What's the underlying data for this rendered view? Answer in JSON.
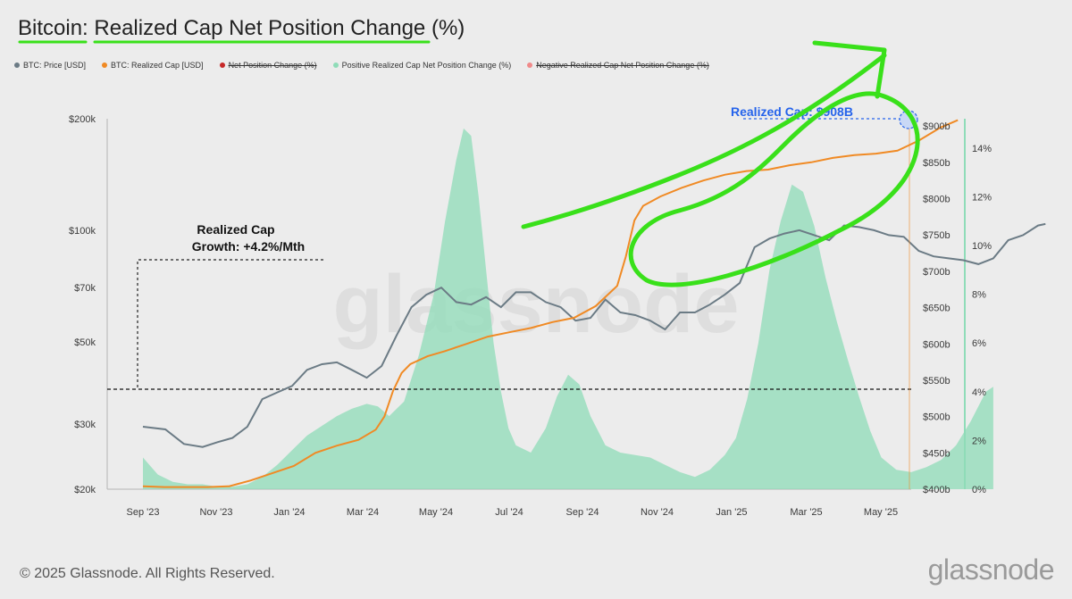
{
  "page": {
    "title_prefix": "Bitcoin",
    "title_main": "Realized Cap Net Position Change",
    "title_suffix": "(%)",
    "footer": "© 2025 Glassnode. All Rights Reserved.",
    "logo": "glassnode",
    "watermark": "glassnode"
  },
  "legend": [
    {
      "label": "BTC: Price [USD]",
      "color": "#6b7b85",
      "strike": false
    },
    {
      "label": "BTC: Realized Cap [USD]",
      "color": "#f08a24",
      "strike": false
    },
    {
      "label": "Net Position Change (%)",
      "color": "#c62828",
      "strike": true
    },
    {
      "label": "Positive Realized Cap Net Position Change (%)",
      "color": "#8fdcb8",
      "strike": false
    },
    {
      "label": "Negative Realized Cap Net Position Change (%)",
      "color": "#f08a8a",
      "strike": true
    }
  ],
  "colors": {
    "price": "#6b7b85",
    "realized_cap": "#f08a24",
    "positive_change": "#8fdcb8",
    "annotation_green": "#39e01a",
    "highlight_blue": "#2563eb"
  },
  "annotations": {
    "growth_label_line1": "Realized Cap",
    "growth_label_line2": "Growth: +4.2%/Mth",
    "realized_cap_label": "Realized Cap: $908B"
  },
  "chart_data": {
    "type": "line",
    "x_ticks": [
      "Sep '23",
      "Nov '23",
      "Jan '24",
      "Mar '24",
      "May '24",
      "Jul '24",
      "Sep '24",
      "Nov '24",
      "Jan '25",
      "Mar '25",
      "May '25"
    ],
    "axes": {
      "price": {
        "scale": "log",
        "range": [
          20000,
          200000
        ],
        "ticks": [
          "$20k",
          "$30k",
          "$50k",
          "$70k",
          "$100k",
          "$200k"
        ],
        "tick_values": [
          20000,
          30000,
          50000,
          70000,
          100000,
          200000
        ]
      },
      "realized_cap": {
        "range": [
          400,
          910
        ],
        "ticks": [
          "$400b",
          "$450b",
          "$500b",
          "$550b",
          "$600b",
          "$650b",
          "$700b",
          "$750b",
          "$800b",
          "$850b",
          "$900b"
        ],
        "tick_values": [
          400,
          450,
          500,
          550,
          600,
          650,
          700,
          750,
          800,
          850,
          900
        ]
      },
      "percent": {
        "range": [
          0,
          15.2
        ],
        "ticks": [
          "0%",
          "2%",
          "4%",
          "6%",
          "8%",
          "10%",
          "12%",
          "14%"
        ],
        "tick_values": [
          0,
          2,
          4,
          6,
          8,
          10,
          12,
          14
        ]
      }
    },
    "series": [
      {
        "name": "BTC: Price [USD]",
        "axis": "price",
        "points": [
          [
            0,
            29500
          ],
          [
            0.3,
            29000
          ],
          [
            0.55,
            26500
          ],
          [
            0.8,
            26000
          ],
          [
            1.0,
            26800
          ],
          [
            1.2,
            27500
          ],
          [
            1.4,
            29500
          ],
          [
            1.6,
            35000
          ],
          [
            1.8,
            36500
          ],
          [
            2.0,
            38000
          ],
          [
            2.2,
            42000
          ],
          [
            2.4,
            43500
          ],
          [
            2.6,
            44000
          ],
          [
            2.8,
            42000
          ],
          [
            3.0,
            40000
          ],
          [
            3.2,
            43000
          ],
          [
            3.4,
            52000
          ],
          [
            3.6,
            62000
          ],
          [
            3.8,
            67000
          ],
          [
            4.0,
            70000
          ],
          [
            4.2,
            64000
          ],
          [
            4.4,
            63000
          ],
          [
            4.6,
            66000
          ],
          [
            4.8,
            62000
          ],
          [
            5.0,
            68000
          ],
          [
            5.2,
            68000
          ],
          [
            5.4,
            64000
          ],
          [
            5.6,
            62000
          ],
          [
            5.8,
            57000
          ],
          [
            6.0,
            58000
          ],
          [
            6.2,
            65000
          ],
          [
            6.4,
            60000
          ],
          [
            6.6,
            59000
          ],
          [
            6.8,
            57000
          ],
          [
            7.0,
            54000
          ],
          [
            7.2,
            60000
          ],
          [
            7.4,
            60000
          ],
          [
            7.6,
            63000
          ],
          [
            7.8,
            67000
          ],
          [
            8.0,
            72000
          ],
          [
            8.2,
            90000
          ],
          [
            8.4,
            95000
          ],
          [
            8.6,
            98000
          ],
          [
            8.8,
            100000
          ],
          [
            9.0,
            97000
          ],
          [
            9.2,
            94000
          ],
          [
            9.4,
            103000
          ],
          [
            9.6,
            102000
          ],
          [
            9.8,
            100000
          ],
          [
            10.0,
            97000
          ],
          [
            10.2,
            96000
          ],
          [
            10.4,
            88000
          ],
          [
            10.6,
            85000
          ],
          [
            10.8,
            84000
          ],
          [
            11.0,
            83000
          ],
          [
            11.2,
            81000
          ],
          [
            11.4,
            84000
          ],
          [
            11.6,
            94000
          ],
          [
            11.8,
            97000
          ],
          [
            12.0,
            103000
          ],
          [
            12.1,
            104000
          ]
        ]
      },
      {
        "name": "BTC: Realized Cap [USD]",
        "axis": "realized_cap",
        "points": [
          [
            0,
            404
          ],
          [
            0.5,
            403
          ],
          [
            1.0,
            403
          ],
          [
            1.5,
            403
          ],
          [
            2.0,
            404
          ],
          [
            2.5,
            412
          ],
          [
            3.0,
            422
          ],
          [
            3.5,
            432
          ],
          [
            4.0,
            450
          ],
          [
            4.5,
            460
          ],
          [
            5.0,
            468
          ],
          [
            5.4,
            482
          ],
          [
            5.6,
            500
          ],
          [
            5.8,
            535
          ],
          [
            6.0,
            560
          ],
          [
            6.2,
            572
          ],
          [
            6.6,
            583
          ],
          [
            7.0,
            590
          ],
          [
            7.5,
            600
          ],
          [
            8.0,
            610
          ],
          [
            8.5,
            616
          ],
          [
            9.0,
            622
          ],
          [
            9.5,
            630
          ],
          [
            10.0,
            636
          ],
          [
            10.5,
            652
          ],
          [
            11.0,
            680
          ],
          [
            11.2,
            720
          ],
          [
            11.4,
            770
          ],
          [
            11.6,
            790
          ],
          [
            12.0,
            803
          ],
          [
            12.5,
            815
          ],
          [
            13.0,
            825
          ],
          [
            13.5,
            833
          ],
          [
            14.0,
            838
          ],
          [
            14.5,
            840
          ],
          [
            15.0,
            846
          ],
          [
            15.5,
            850
          ],
          [
            16.0,
            856
          ],
          [
            16.5,
            860
          ],
          [
            17.0,
            862
          ],
          [
            17.5,
            866
          ],
          [
            18.0,
            880
          ],
          [
            18.5,
            898
          ],
          [
            18.9,
            908
          ]
        ]
      },
      {
        "name": "Positive Realized Cap Net Position Change (%)",
        "axis": "percent",
        "points": [
          [
            0,
            1.3
          ],
          [
            0.4,
            0.6
          ],
          [
            0.8,
            0.3
          ],
          [
            1.2,
            0.2
          ],
          [
            1.6,
            0.2
          ],
          [
            2.0,
            0.1
          ],
          [
            2.4,
            0.1
          ],
          [
            2.8,
            0.2
          ],
          [
            3.2,
            0.5
          ],
          [
            3.6,
            1.0
          ],
          [
            4.0,
            1.6
          ],
          [
            4.4,
            2.2
          ],
          [
            4.8,
            2.6
          ],
          [
            5.2,
            3.0
          ],
          [
            5.6,
            3.3
          ],
          [
            6.0,
            3.5
          ],
          [
            6.3,
            3.4
          ],
          [
            6.6,
            3.0
          ],
          [
            7.0,
            3.6
          ],
          [
            7.4,
            5.5
          ],
          [
            7.8,
            8.0
          ],
          [
            8.1,
            11.0
          ],
          [
            8.4,
            13.5
          ],
          [
            8.6,
            14.8
          ],
          [
            8.8,
            14.5
          ],
          [
            9.0,
            12.0
          ],
          [
            9.2,
            9.0
          ],
          [
            9.4,
            6.0
          ],
          [
            9.6,
            4.0
          ],
          [
            9.8,
            2.5
          ],
          [
            10.0,
            1.8
          ],
          [
            10.4,
            1.5
          ],
          [
            10.8,
            2.5
          ],
          [
            11.1,
            3.8
          ],
          [
            11.4,
            4.7
          ],
          [
            11.7,
            4.3
          ],
          [
            12.0,
            3.0
          ],
          [
            12.4,
            1.8
          ],
          [
            12.8,
            1.5
          ],
          [
            13.2,
            1.4
          ],
          [
            13.6,
            1.3
          ],
          [
            14.0,
            1.0
          ],
          [
            14.4,
            0.7
          ],
          [
            14.8,
            0.5
          ],
          [
            15.2,
            0.8
          ],
          [
            15.6,
            1.4
          ],
          [
            15.9,
            2.1
          ],
          [
            16.2,
            3.7
          ],
          [
            16.5,
            6.0
          ],
          [
            16.8,
            9.0
          ],
          [
            17.1,
            11.0
          ],
          [
            17.4,
            12.5
          ],
          [
            17.7,
            12.2
          ],
          [
            18.0,
            10.8
          ],
          [
            18.3,
            8.7
          ],
          [
            18.6,
            6.9
          ],
          [
            18.9,
            5.3
          ],
          [
            19.2,
            3.8
          ],
          [
            19.5,
            2.4
          ],
          [
            19.8,
            1.3
          ],
          [
            20.2,
            0.8
          ],
          [
            20.6,
            0.7
          ],
          [
            21.0,
            0.9
          ],
          [
            21.4,
            1.2
          ],
          [
            21.8,
            1.8
          ],
          [
            22.2,
            2.8
          ],
          [
            22.6,
            4.0
          ],
          [
            22.8,
            4.2
          ]
        ]
      }
    ],
    "annotations": [
      {
        "text": "Realized Cap Growth: +4.2%/Mth"
      },
      {
        "text": "Realized Cap: $908B",
        "value": 908,
        "unit": "billion USD"
      }
    ],
    "legend_position": "top-left",
    "grid": false
  }
}
